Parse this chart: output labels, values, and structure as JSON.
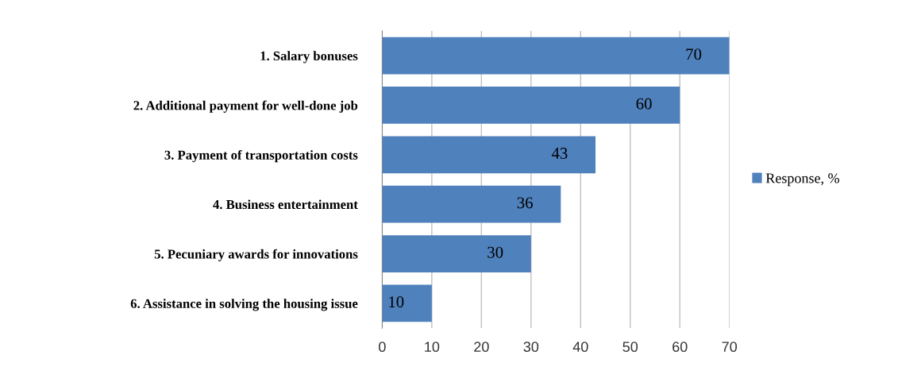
{
  "chart_data": {
    "type": "bar",
    "orientation": "horizontal",
    "categories": [
      "1. Salary bonuses",
      "2. Additional payment for well-done job",
      "3. Payment of transportation costs",
      "4. Business entertainment",
      "5. Pecuniary awards for innovations",
      "6. Assistance in solving the housing issue"
    ],
    "series": [
      {
        "name": "Response, %",
        "color": "#4f81bd",
        "values": [
          70,
          60,
          43,
          36,
          30,
          10
        ]
      }
    ],
    "xlim": [
      0,
      70
    ],
    "xticks": [
      0,
      10,
      20,
      30,
      40,
      50,
      60,
      70
    ],
    "grid": "x",
    "legend": "right",
    "data_labels": true
  }
}
